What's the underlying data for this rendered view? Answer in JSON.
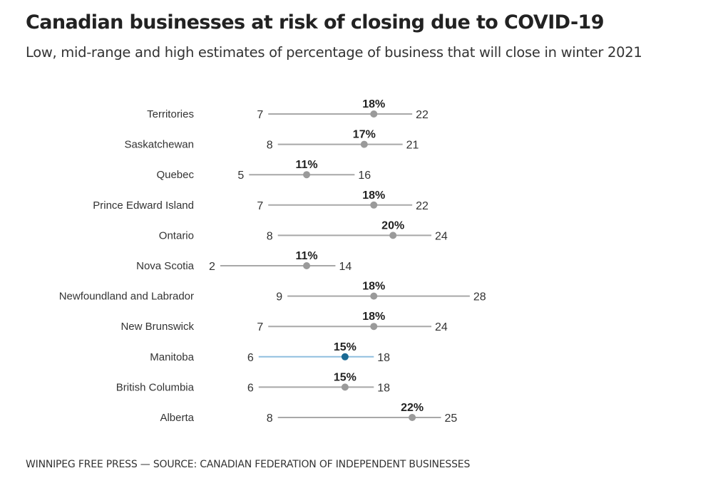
{
  "chart_data": {
    "type": "dumbbell",
    "title": "Canadian businesses at risk of closing due to COVID-19",
    "subtitle": "Low, mid-range and high estimates of percentage of business that will close in winter 2021",
    "source": "WINNIPEG FREE PRESS — SOURCE: CANADIAN FEDERATION OF INDEPENDENT BUSINESSES",
    "unit_suffix": "%",
    "highlight": "Manitoba",
    "colors": {
      "line": "#a8a8a8",
      "dot": "#9a9a9a",
      "highlight_line": "#8fbfdf",
      "highlight_dot": "#1a6a94",
      "text": "#333333"
    },
    "categories": [
      "Territories",
      "Saskatchewan",
      "Quebec",
      "Prince Edward Island",
      "Ontario",
      "Nova Scotia",
      "Newfoundland and Labrador",
      "New Brunswick",
      "Manitoba",
      "British Columbia",
      "Alberta"
    ],
    "series": [
      {
        "name": "low",
        "values": [
          7,
          8,
          5,
          7,
          8,
          2,
          9,
          7,
          6,
          6,
          8
        ]
      },
      {
        "name": "mid",
        "values": [
          18,
          17,
          11,
          18,
          20,
          11,
          18,
          18,
          15,
          15,
          22
        ]
      },
      {
        "name": "high",
        "values": [
          22,
          21,
          16,
          22,
          24,
          14,
          28,
          24,
          18,
          18,
          25
        ]
      }
    ]
  }
}
